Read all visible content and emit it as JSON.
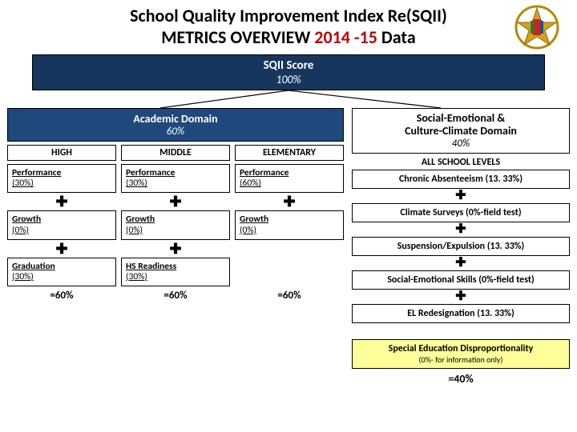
{
  "title": {
    "prefix": "School Quality Improvement Index  Re",
    "acronym": "(SQII)",
    "line2_a": "METRICS OVERVIEW ",
    "line2_year": "2014 -15",
    "line2_b": " Data"
  },
  "score_box": {
    "label": "SQII Score",
    "value": "100%"
  },
  "academic": {
    "label": "Academic Domain",
    "value": "60%",
    "columns": [
      {
        "level": "HIGH",
        "rows": [
          {
            "name": "Performance",
            "val": "(30%)"
          },
          {
            "name": "Growth",
            "val": "(0%)"
          },
          {
            "name": "Graduation",
            "val": "(30%)"
          }
        ],
        "total": "=60%"
      },
      {
        "level": "MIDDLE",
        "rows": [
          {
            "name": "Performance",
            "val": "(30%)"
          },
          {
            "name": "Growth",
            "val": "(0%)"
          },
          {
            "name": "HS Readiness",
            "val": "(30%)"
          }
        ],
        "total": "=60%"
      },
      {
        "level": "ELEMENTARY",
        "rows": [
          {
            "name": "Performance",
            "val": "(60%)"
          },
          {
            "name": "Growth",
            "val": "(0%)"
          }
        ],
        "total": "=60%"
      }
    ]
  },
  "social": {
    "label": "Social-Emotional &\nCulture-Climate Domain",
    "value": "40%",
    "sublabel": "ALL SCHOOL LEVELS",
    "items": [
      "Chronic Absenteeism (13. 33%)",
      "Climate Surveys (0%-field test)",
      "Suspension/Expulsion (13. 33%)",
      "Social-Emotional Skills (0%-field test)",
      "EL Redesignation (13. 33%)"
    ],
    "extra": {
      "l1": "Special Education Disproportionality",
      "l2": "(0%- for information only)"
    },
    "total": "=40%"
  },
  "colors": {
    "score_bg": "#17365d",
    "academic_bg": "#1f497d",
    "year": "#c00000",
    "highlight": "#ffff99"
  }
}
